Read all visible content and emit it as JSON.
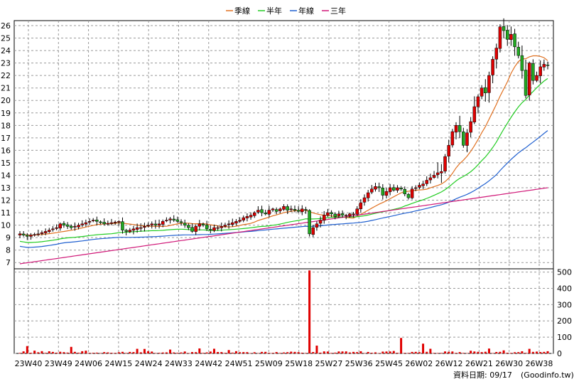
{
  "chart_data": {
    "type": "candlestick",
    "legend_position": "top-center",
    "legend": [
      {
        "label": "季線",
        "color": "#e07020"
      },
      {
        "label": "半年",
        "color": "#22cc22"
      },
      {
        "label": "年線",
        "color": "#2060d0"
      },
      {
        "label": "三年",
        "color": "#d01878"
      }
    ],
    "price_axis": {
      "min": 6.5,
      "max": 26.4,
      "ticks": [
        7,
        8,
        9,
        10,
        11,
        12,
        13,
        14,
        15,
        16,
        17,
        18,
        19,
        20,
        21,
        22,
        23,
        24,
        25,
        26
      ],
      "side": "left"
    },
    "volume_axis": {
      "min": 0,
      "max": 520,
      "ticks": [
        0,
        100,
        200,
        300,
        400,
        500
      ],
      "side": "right"
    },
    "x_ticks": [
      "23W40",
      "23W49",
      "24W06",
      "24W15",
      "24W24",
      "24W33",
      "24W42",
      "24W51",
      "25W09",
      "25W18",
      "25W27",
      "25W36",
      "25W45",
      "26W02",
      "26W12",
      "26W21",
      "26W30",
      "26W38"
    ],
    "grid": true,
    "up_color": "#e00000",
    "down_color": "#22aa22",
    "footer": "資料日期: 09/17",
    "source": "(Goodinfo.tw)",
    "weekly_close": [
      9.3,
      9.2,
      9.1,
      9.2,
      9.25,
      9.3,
      9.4,
      9.5,
      9.6,
      9.7,
      9.8,
      10.1,
      10.0,
      9.9,
      9.8,
      9.9,
      10.0,
      10.1,
      10.2,
      10.3,
      10.4,
      10.3,
      10.2,
      10.1,
      10.15,
      10.2,
      10.25,
      10.3,
      9.6,
      9.5,
      9.6,
      9.7,
      9.8,
      9.8,
      9.9,
      10.0,
      10.1,
      10.0,
      10.1,
      10.3,
      10.4,
      10.5,
      10.4,
      10.3,
      10.2,
      10.0,
      9.8,
      9.5,
      9.9,
      10.1,
      10.0,
      9.7,
      9.6,
      9.8,
      9.8,
      9.9,
      10.0,
      10.1,
      10.2,
      10.3,
      10.4,
      10.6,
      10.7,
      10.8,
      11.0,
      11.2,
      11.0,
      10.9,
      11.2,
      11.3,
      11.1,
      11.3,
      11.5,
      11.2,
      11.3,
      11.2,
      11.1,
      11.3,
      11.2,
      9.3,
      9.8,
      10.1,
      10.4,
      10.8,
      11.0,
      10.9,
      10.7,
      10.9,
      10.8,
      10.8,
      10.9,
      10.9,
      11.3,
      11.8,
      12.2,
      12.6,
      12.9,
      13.1,
      13.0,
      12.4,
      12.7,
      13.0,
      12.8,
      13.0,
      12.9,
      12.5,
      12.2,
      12.9,
      13.0,
      13.2,
      13.3,
      13.6,
      13.8,
      14.0,
      14.2,
      14.3,
      15.5,
      16.4,
      17.5,
      18.0,
      17.5,
      16.4,
      17.4,
      18.3,
      19.5,
      20.3,
      21.0,
      20.6,
      22.0,
      23.3,
      24.2,
      25.9,
      25.6,
      24.9,
      25.3,
      24.3,
      23.6,
      22.4,
      20.4,
      23.0,
      21.6,
      22.0,
      22.7,
      22.9,
      22.8
    ]
  }
}
